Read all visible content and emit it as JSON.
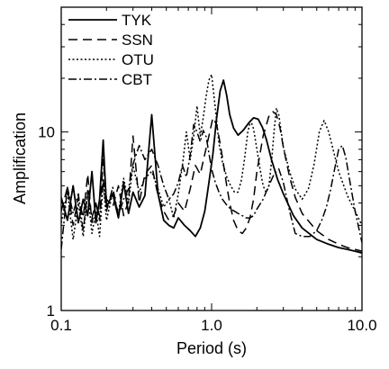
{
  "chart_data": {
    "type": "line",
    "xlabel": "Period (s)",
    "ylabel": "Amplification",
    "xscale": "log",
    "yscale": "log",
    "xlim": [
      0.1,
      10.0
    ],
    "ylim": [
      1,
      50
    ],
    "x_ticks": [
      {
        "value": 0.1,
        "label": "0.1"
      },
      {
        "value": 1.0,
        "label": "1.0"
      },
      {
        "value": 10.0,
        "label": "10.0"
      }
    ],
    "y_ticks": [
      {
        "value": 1,
        "label": "1"
      },
      {
        "value": 10,
        "label": "10"
      }
    ],
    "grid": false,
    "legend_position": "top-left",
    "series": [
      {
        "name": "TYK",
        "dash": "solid",
        "color": "#000000",
        "x": [
          0.1,
          0.11,
          0.12,
          0.13,
          0.14,
          0.15,
          0.16,
          0.17,
          0.18,
          0.19,
          0.2,
          0.22,
          0.24,
          0.26,
          0.28,
          0.3,
          0.33,
          0.36,
          0.4,
          0.44,
          0.48,
          0.52,
          0.56,
          0.6,
          0.66,
          0.72,
          0.78,
          0.84,
          0.9,
          0.96,
          1.02,
          1.08,
          1.14,
          1.2,
          1.26,
          1.32,
          1.4,
          1.5,
          1.62,
          1.76,
          1.9,
          2.04,
          2.18,
          2.32,
          2.5,
          2.75,
          3.0,
          3.5,
          4.0,
          5.0,
          6.0,
          7.0,
          8.0,
          9.0,
          10.0
        ],
        "y": [
          4.3,
          3.2,
          5.0,
          3.1,
          4.2,
          3.4,
          6.0,
          3.1,
          4.2,
          9.0,
          3.8,
          4.5,
          3.3,
          5.2,
          3.5,
          4.6,
          3.8,
          4.4,
          12.5,
          4.5,
          3.2,
          3.0,
          2.9,
          3.3,
          3.0,
          2.8,
          2.6,
          2.9,
          3.6,
          5.2,
          7.5,
          12.0,
          17.0,
          19.5,
          16.0,
          12.5,
          10.5,
          9.6,
          10.2,
          11.2,
          12.0,
          11.8,
          10.6,
          9.0,
          7.0,
          5.4,
          4.5,
          3.4,
          2.9,
          2.5,
          2.35,
          2.25,
          2.2,
          2.15,
          2.1
        ]
      },
      {
        "name": "SSN",
        "dash": "dash",
        "color": "#000000",
        "x": [
          0.1,
          0.11,
          0.12,
          0.13,
          0.14,
          0.15,
          0.16,
          0.17,
          0.18,
          0.19,
          0.2,
          0.22,
          0.24,
          0.26,
          0.28,
          0.3,
          0.33,
          0.36,
          0.4,
          0.44,
          0.48,
          0.52,
          0.56,
          0.6,
          0.66,
          0.72,
          0.78,
          0.84,
          0.9,
          0.96,
          1.02,
          1.08,
          1.14,
          1.2,
          1.26,
          1.32,
          1.4,
          1.5,
          1.6,
          1.7,
          1.8,
          1.9,
          2.0,
          2.2,
          2.4,
          2.55,
          2.7,
          2.85,
          3.0,
          3.3,
          3.6,
          4.0,
          5.0,
          6.0,
          7.0,
          8.0,
          9.0,
          10.0
        ],
        "y": [
          3.6,
          4.9,
          3.0,
          4.3,
          3.3,
          5.8,
          3.1,
          4.0,
          3.4,
          7.0,
          4.2,
          3.8,
          5.0,
          3.4,
          4.1,
          9.5,
          4.0,
          5.8,
          6.5,
          4.4,
          3.6,
          3.2,
          3.4,
          4.0,
          3.6,
          4.8,
          6.5,
          5.8,
          7.5,
          9.5,
          12.0,
          11.0,
          8.6,
          6.6,
          5.0,
          4.0,
          3.2,
          2.8,
          2.7,
          2.9,
          3.3,
          4.2,
          6.0,
          9.5,
          12.2,
          13.0,
          12.5,
          10.5,
          8.2,
          5.6,
          4.3,
          3.5,
          2.8,
          2.5,
          2.35,
          2.25,
          2.2,
          2.15
        ]
      },
      {
        "name": "OTU",
        "dash": "dot",
        "color": "#000000",
        "x": [
          0.1,
          0.11,
          0.12,
          0.13,
          0.14,
          0.15,
          0.16,
          0.17,
          0.18,
          0.19,
          0.2,
          0.22,
          0.24,
          0.26,
          0.28,
          0.3,
          0.33,
          0.36,
          0.4,
          0.44,
          0.48,
          0.52,
          0.56,
          0.6,
          0.64,
          0.68,
          0.72,
          0.76,
          0.8,
          0.84,
          0.88,
          0.92,
          0.96,
          1.0,
          1.06,
          1.12,
          1.18,
          1.26,
          1.34,
          1.42,
          1.5,
          1.58,
          1.66,
          1.74,
          1.82,
          1.9,
          2.0,
          2.1,
          2.2,
          2.3,
          2.4,
          2.5,
          2.6,
          2.7,
          2.8,
          3.0,
          3.3,
          3.6,
          4.0,
          4.4,
          4.8,
          5.2,
          5.6,
          6.0,
          7.0,
          8.0,
          9.0,
          10.0
        ],
        "y": [
          3.1,
          4.6,
          2.5,
          4.0,
          2.6,
          4.5,
          2.7,
          3.6,
          2.6,
          5.2,
          3.2,
          4.6,
          3.5,
          5.5,
          4.0,
          6.5,
          4.6,
          5.5,
          6.0,
          4.8,
          3.8,
          4.2,
          3.3,
          4.5,
          6.5,
          10.0,
          7.0,
          9.5,
          14.0,
          9.5,
          12.0,
          16.0,
          19.5,
          21.0,
          13.5,
          8.6,
          6.8,
          5.6,
          5.0,
          4.6,
          4.6,
          5.4,
          7.2,
          10.0,
          11.6,
          10.4,
          8.0,
          6.2,
          5.0,
          4.6,
          4.9,
          6.8,
          10.0,
          13.6,
          12.4,
          8.2,
          6.0,
          4.8,
          4.2,
          4.8,
          6.6,
          10.0,
          11.6,
          10.0,
          6.0,
          4.4,
          3.6,
          3.0
        ]
      },
      {
        "name": "CBT",
        "dash": "dashdot",
        "color": "#000000",
        "x": [
          0.1,
          0.11,
          0.12,
          0.13,
          0.14,
          0.15,
          0.16,
          0.17,
          0.18,
          0.19,
          0.2,
          0.22,
          0.24,
          0.26,
          0.28,
          0.3,
          0.33,
          0.36,
          0.4,
          0.44,
          0.48,
          0.52,
          0.56,
          0.6,
          0.64,
          0.68,
          0.72,
          0.76,
          0.8,
          0.84,
          0.88,
          0.92,
          0.96,
          1.0,
          1.06,
          1.12,
          1.18,
          1.26,
          1.34,
          1.42,
          1.5,
          1.6,
          1.7,
          1.8,
          1.9,
          2.0,
          2.2,
          2.4,
          2.6,
          2.8,
          3.0,
          3.3,
          3.6,
          4.0,
          4.5,
          5.0,
          5.4,
          5.8,
          6.2,
          6.6,
          7.0,
          7.4,
          7.8,
          8.4,
          9.0,
          10.0
        ],
        "y": [
          2.2,
          4.9,
          3.5,
          4.5,
          2.8,
          4.7,
          3.3,
          4.0,
          3.2,
          5.5,
          3.6,
          4.9,
          3.4,
          4.2,
          4.8,
          6.6,
          8.4,
          7.0,
          8.0,
          6.5,
          5.0,
          4.2,
          4.5,
          5.2,
          6.5,
          5.6,
          7.4,
          11.0,
          10.0,
          8.8,
          10.2,
          9.4,
          7.6,
          6.2,
          5.2,
          4.6,
          4.2,
          3.9,
          3.7,
          3.6,
          3.5,
          3.4,
          3.3,
          3.3,
          3.4,
          3.7,
          4.2,
          5.0,
          5.8,
          6.2,
          5.2,
          3.6,
          2.7,
          2.6,
          2.6,
          2.8,
          3.2,
          3.8,
          4.8,
          6.3,
          8.0,
          8.4,
          7.2,
          5.0,
          3.6,
          2.4
        ]
      }
    ]
  }
}
